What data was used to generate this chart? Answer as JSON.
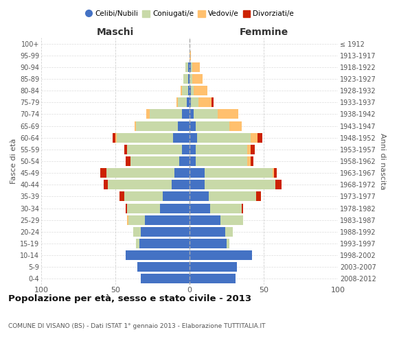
{
  "age_groups": [
    "0-4",
    "5-9",
    "10-14",
    "15-19",
    "20-24",
    "25-29",
    "30-34",
    "35-39",
    "40-44",
    "45-49",
    "50-54",
    "55-59",
    "60-64",
    "65-69",
    "70-74",
    "75-79",
    "80-84",
    "85-89",
    "90-94",
    "95-99",
    "100+"
  ],
  "birth_years": [
    "2008-2012",
    "2003-2007",
    "1998-2002",
    "1993-1997",
    "1988-1992",
    "1983-1987",
    "1978-1982",
    "1973-1977",
    "1968-1972",
    "1963-1967",
    "1958-1962",
    "1953-1957",
    "1948-1952",
    "1943-1947",
    "1938-1942",
    "1933-1937",
    "1928-1932",
    "1923-1927",
    "1918-1922",
    "1913-1917",
    "≤ 1912"
  ],
  "maschi": {
    "celibi": [
      33,
      35,
      43,
      34,
      33,
      30,
      20,
      18,
      12,
      10,
      7,
      5,
      11,
      8,
      5,
      2,
      1,
      1,
      1,
      0,
      0
    ],
    "coniugati": [
      0,
      0,
      0,
      2,
      5,
      11,
      22,
      26,
      43,
      46,
      33,
      37,
      38,
      28,
      22,
      6,
      4,
      3,
      2,
      0,
      0
    ],
    "vedovi": [
      0,
      0,
      0,
      0,
      0,
      1,
      0,
      0,
      0,
      0,
      0,
      0,
      1,
      1,
      2,
      1,
      1,
      0,
      0,
      0,
      0
    ],
    "divorziati": [
      0,
      0,
      0,
      0,
      0,
      0,
      1,
      3,
      3,
      4,
      3,
      2,
      2,
      0,
      0,
      0,
      0,
      0,
      0,
      0,
      0
    ]
  },
  "femmine": {
    "nubili": [
      31,
      32,
      42,
      25,
      24,
      21,
      14,
      13,
      10,
      10,
      4,
      4,
      5,
      4,
      3,
      1,
      1,
      0,
      1,
      0,
      0
    ],
    "coniugate": [
      0,
      0,
      0,
      2,
      5,
      15,
      21,
      32,
      48,
      46,
      35,
      35,
      36,
      23,
      16,
      5,
      2,
      2,
      1,
      0,
      0
    ],
    "vedove": [
      0,
      0,
      0,
      0,
      0,
      0,
      0,
      0,
      0,
      1,
      2,
      2,
      5,
      8,
      14,
      9,
      9,
      7,
      5,
      1,
      0
    ],
    "divorziate": [
      0,
      0,
      0,
      0,
      0,
      0,
      1,
      3,
      4,
      2,
      2,
      3,
      3,
      0,
      0,
      1,
      0,
      0,
      0,
      0,
      0
    ]
  },
  "colors": {
    "celibi_nubili": "#4472c4",
    "coniugati": "#c8d9a8",
    "vedovi": "#ffc06e",
    "divorziati": "#cc2200"
  },
  "title": "Popolazione per età, sesso e stato civile - 2013",
  "subtitle": "COMUNE DI VISANO (BS) - Dati ISTAT 1° gennaio 2013 - Elaborazione TUTTITALIA.IT",
  "xlabel_left": "Maschi",
  "xlabel_right": "Femmine",
  "ylabel_left": "Fasce di età",
  "ylabel_right": "Anni di nascita",
  "xlim": 100,
  "background_color": "#ffffff",
  "grid_color": "#cccccc"
}
